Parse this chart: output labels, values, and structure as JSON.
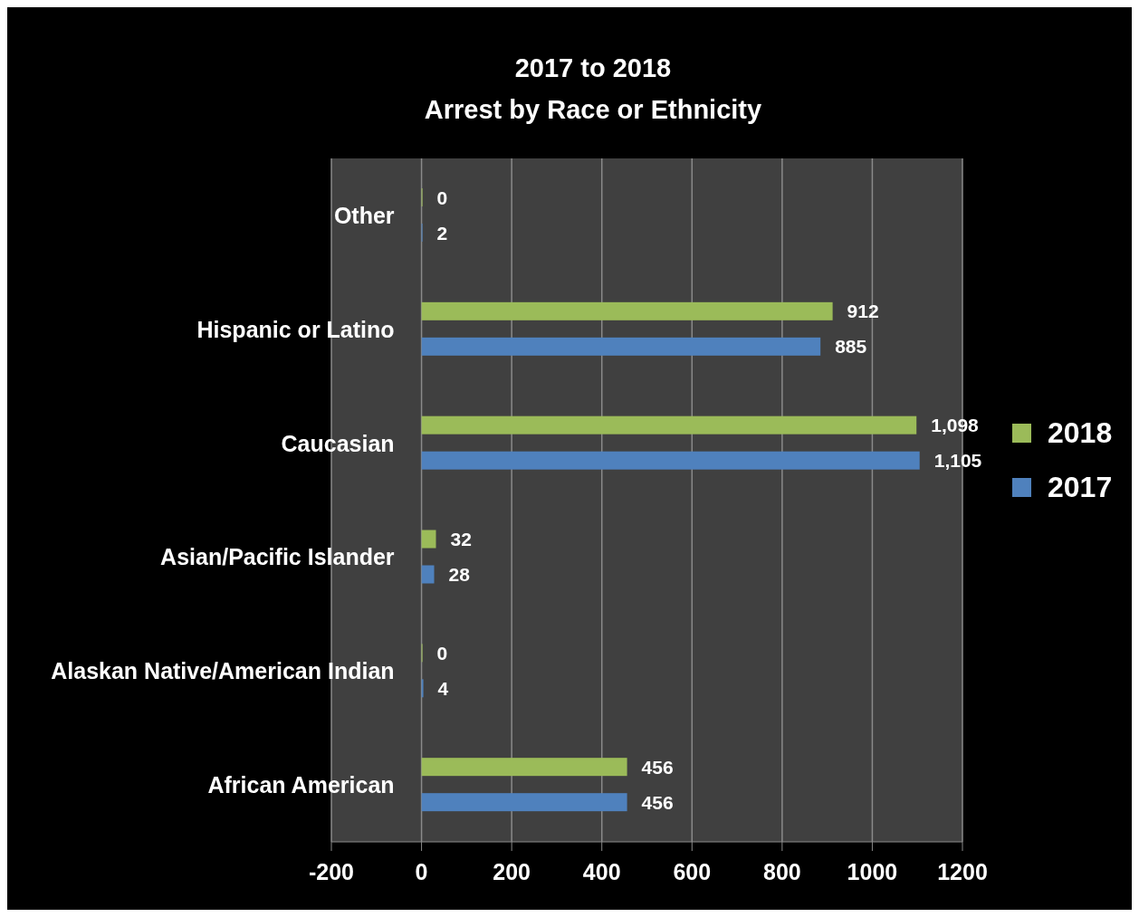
{
  "chart_data": {
    "type": "bar",
    "orientation": "horizontal",
    "title": "2017 to 2018",
    "subtitle": "Arrest by Race or Ethnicity",
    "categories": [
      "Other",
      "Hispanic or Latino",
      "Caucasian",
      "Asian/Pacific Islander",
      "Alaskan Native/American Indian",
      "African American"
    ],
    "series": [
      {
        "name": "2018",
        "color": "#9bbb59",
        "values": [
          0,
          912,
          1098,
          32,
          0,
          456
        ],
        "value_labels": [
          "0",
          "912",
          "1,098",
          "32",
          "0",
          "456"
        ]
      },
      {
        "name": "2017",
        "color": "#4f81bd",
        "values": [
          2,
          885,
          1105,
          28,
          4,
          456
        ],
        "value_labels": [
          "2",
          "885",
          "1,105",
          "28",
          "4",
          "456"
        ]
      }
    ],
    "xlim": [
      -200,
      1200
    ],
    "xticks": [
      -200,
      0,
      200,
      400,
      600,
      800,
      1000,
      1200
    ],
    "grid": "x",
    "legend": "right"
  }
}
